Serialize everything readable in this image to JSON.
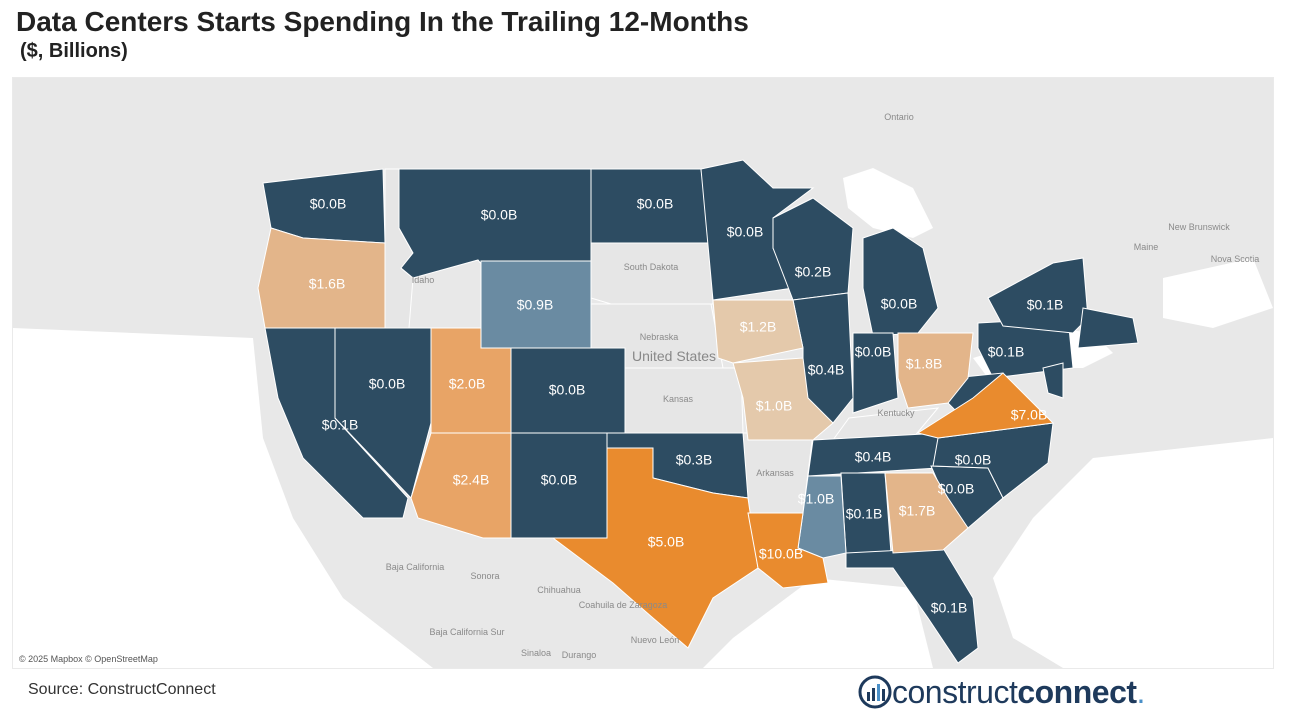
{
  "title": "Data Centers Starts Spending In the Trailing 12-Months",
  "subtitle": "($, Billions)",
  "attribution": "© 2025 Mapbox © OpenStreetMap",
  "source": "Source: ConstructConnect",
  "logo": {
    "part1": "construct",
    "part2": "connect",
    "dot": "."
  },
  "colors": {
    "navy": "#2d4c62",
    "steel": "#6a8ba2",
    "light_tan": "#e4c9ab",
    "tan": "#e3b58a",
    "mid_orange": "#e8a466",
    "orange": "#e98b2e",
    "no_data": "#e6e6e6"
  },
  "geo_labels": {
    "ontario": "Ontario",
    "new_brunswick": "New Brunswick",
    "maine": "Maine",
    "nova_scotia": "Nova Scotia",
    "idaho": "Idaho",
    "south_dakota": "South Dakota",
    "nebraska": "Nebraska",
    "united_states": "United States",
    "kansas": "Kansas",
    "kentucky": "Kentucky",
    "arkansas": "Arkansas",
    "baja_california": "Baja California",
    "sonora": "Sonora",
    "chihuahua": "Chihuahua",
    "coahuila": "Coahuila de Zaragoza",
    "nuevo_leon": "Nuevo León",
    "baja_california_sur": "Baja California Sur",
    "sinaloa": "Sinaloa",
    "durango": "Durango"
  },
  "states": {
    "WA": "$0.0B",
    "OR": "$1.6B",
    "CA": "$0.1B",
    "NV": "$0.0B",
    "MT": "$0.0B",
    "WY": "$0.9B",
    "UT": "$2.0B",
    "AZ": "$2.4B",
    "CO": "$0.0B",
    "NM": "$0.0B",
    "ND": "$0.0B",
    "MN": "$0.0B",
    "IA": "$1.2B",
    "MO": "$1.0B",
    "OK": "$0.3B",
    "TX": "$5.0B",
    "LA": "$10.0B",
    "MS": "$1.0B",
    "WI": "$0.2B",
    "IL": "$0.4B",
    "MI": "$0.0B",
    "IN": "$0.0B",
    "OH": "$1.8B",
    "TN": "$0.4B",
    "AL": "$0.1B",
    "GA": "$1.7B",
    "FL": "$0.1B",
    "SC": "$0.0B",
    "NC": "$0.0B",
    "VA": "$7.0B",
    "PA": "$0.1B",
    "NY": "$0.1B"
  }
}
